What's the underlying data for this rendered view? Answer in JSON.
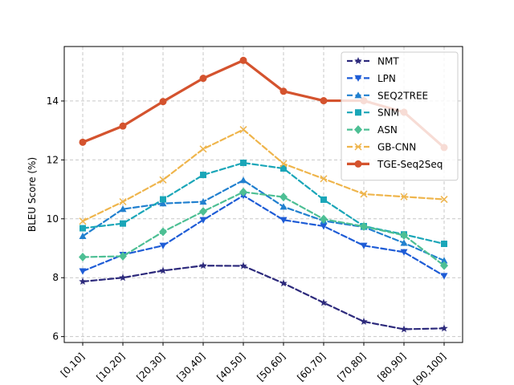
{
  "chart_data": {
    "type": "line",
    "title": "",
    "xlabel": "",
    "ylabel": "BLEU Score (%)",
    "categories": [
      "[0,10]",
      "[10,20]",
      "[20,30]",
      "[30,40]",
      "[40,50]",
      "[50,60]",
      "[60,70]",
      "[70,80]",
      "[80,90]",
      "[90,100]"
    ],
    "ylim": [
      5.8,
      15.85
    ],
    "yticks": [
      6,
      8,
      10,
      12,
      14
    ],
    "grid": true,
    "legend_position": "top-right",
    "series": [
      {
        "name": "NMT",
        "color": "#2d2a7c",
        "marker": "star",
        "linestyle": "dashed",
        "values": [
          7.87,
          8.0,
          8.24,
          8.41,
          8.4,
          7.81,
          7.15,
          6.51,
          6.25,
          6.28
        ]
      },
      {
        "name": "LPN",
        "color": "#1e5cd6",
        "marker": "triangle-down",
        "linestyle": "dashed",
        "values": [
          8.22,
          8.78,
          9.09,
          9.96,
          10.79,
          9.96,
          9.75,
          9.09,
          8.87,
          8.06
        ]
      },
      {
        "name": "SEQ2TREE",
        "color": "#2180cf",
        "marker": "triangle-up",
        "linestyle": "dashed",
        "values": [
          9.41,
          10.33,
          10.52,
          10.58,
          11.31,
          10.41,
          9.93,
          9.72,
          9.18,
          8.58
        ]
      },
      {
        "name": "SNM",
        "color": "#1aa6b8",
        "marker": "square",
        "linestyle": "dashed",
        "values": [
          9.68,
          9.84,
          10.66,
          11.49,
          11.9,
          11.71,
          10.65,
          9.75,
          9.47,
          9.15
        ]
      },
      {
        "name": "ASN",
        "color": "#4dbf94",
        "marker": "diamond",
        "linestyle": "dashed",
        "values": [
          8.7,
          8.73,
          9.56,
          10.25,
          10.91,
          10.74,
          9.99,
          9.74,
          9.44,
          8.41
        ]
      },
      {
        "name": "GB-CNN",
        "color": "#efb54c",
        "marker": "x",
        "linestyle": "dashed",
        "values": [
          9.92,
          10.58,
          11.32,
          12.37,
          13.03,
          11.87,
          11.36,
          10.84,
          10.75,
          10.66
        ]
      },
      {
        "name": "TGE-Seq2Seq",
        "color": "#d4532e",
        "marker": "circle",
        "linestyle": "solid",
        "values": [
          12.6,
          13.15,
          13.98,
          14.77,
          15.38,
          14.33,
          14.01,
          14.01,
          13.62,
          12.42
        ]
      }
    ]
  }
}
